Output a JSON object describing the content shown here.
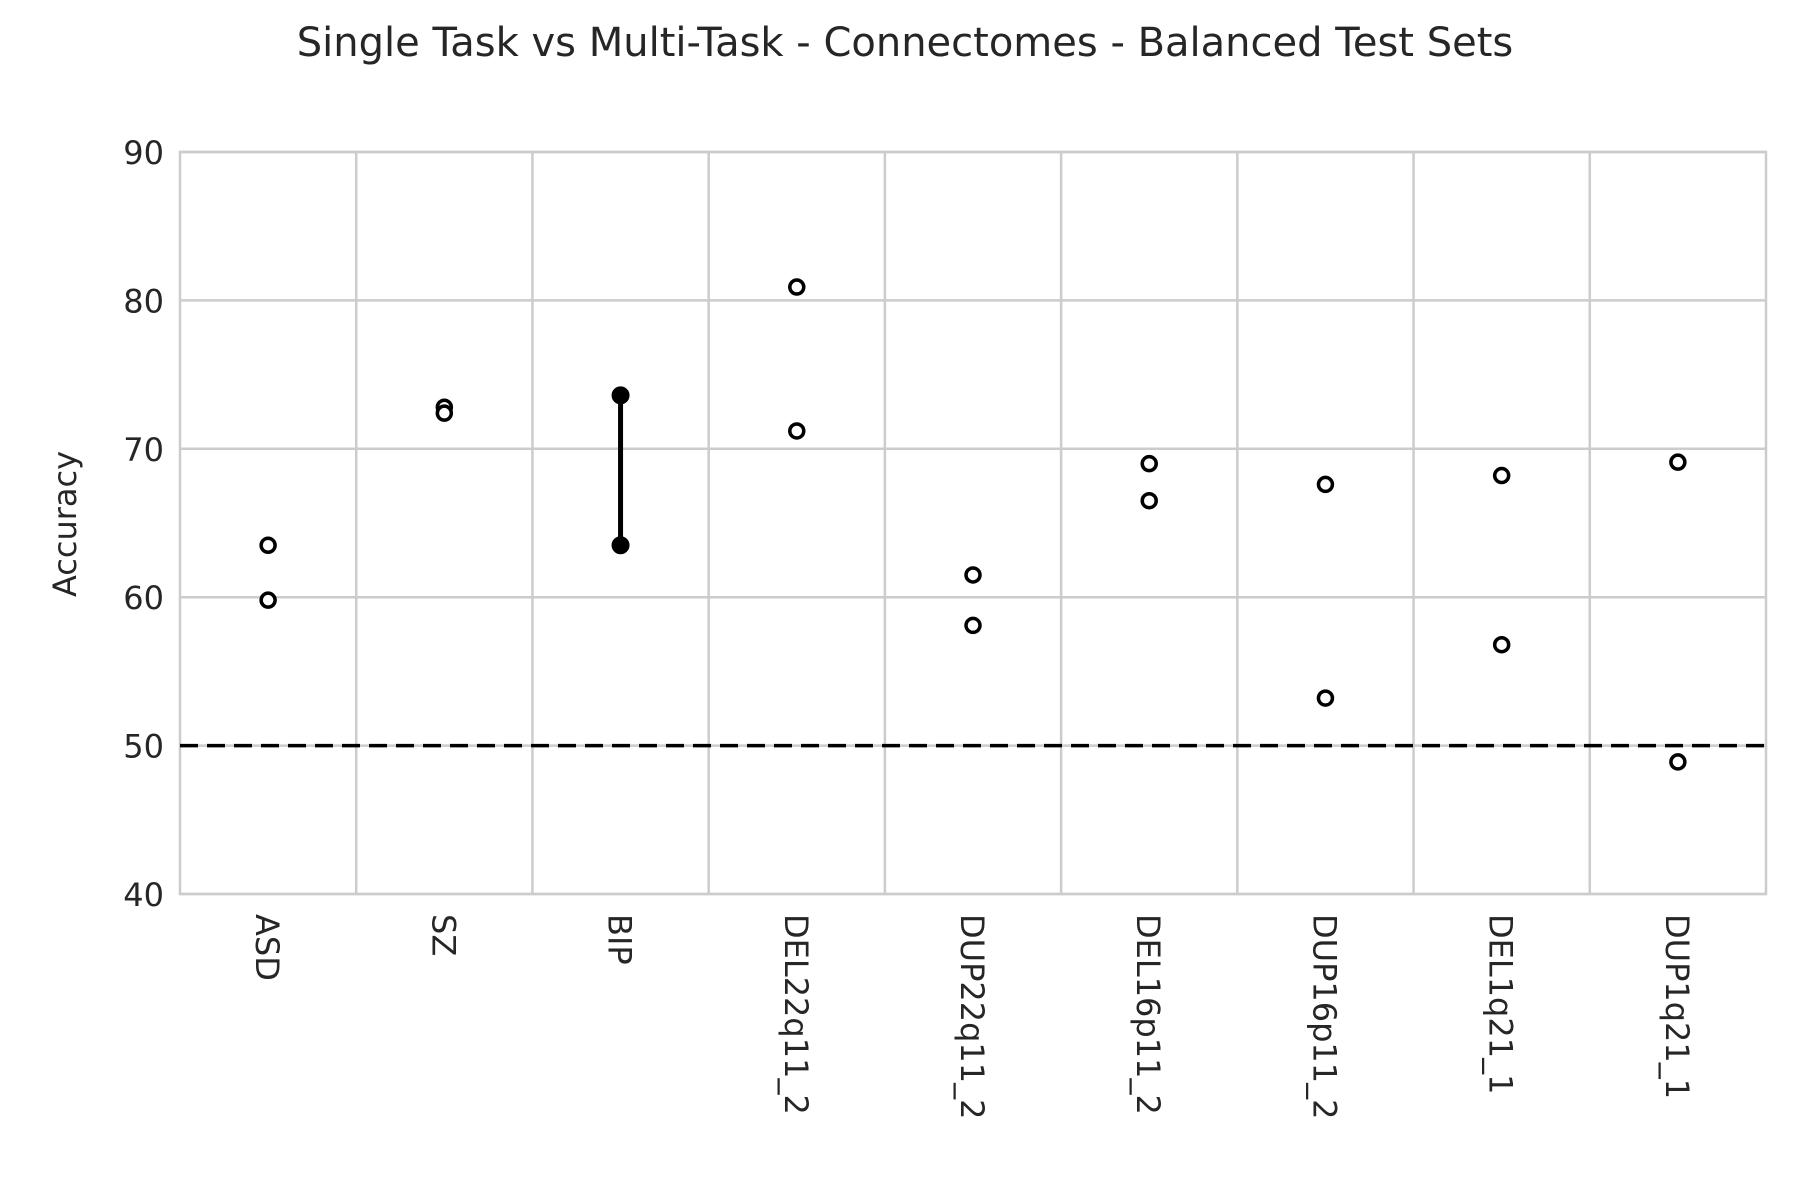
{
  "chart_data": {
    "type": "scatter",
    "title": "Single Task vs Multi-Task - Connectomes - Balanced Test Sets",
    "xlabel": "",
    "ylabel": "Accuracy",
    "ylim": [
      40,
      90
    ],
    "yticks": [
      40,
      50,
      60,
      70,
      80,
      90
    ],
    "grid": true,
    "legend": "none",
    "categories": [
      "ASD",
      "SZ",
      "BIP",
      "DEL22q11_2",
      "DUP22q11_2",
      "DEL16p11_2",
      "DUP16p11_2",
      "DEL1q21_1",
      "DUP1q21_1"
    ],
    "series": [
      {
        "values": [
          63.5,
          72.8,
          73.6,
          80.9,
          61.5,
          69.0,
          67.6,
          68.2,
          69.1
        ]
      },
      {
        "values": [
          59.8,
          72.4,
          63.5,
          71.2,
          58.1,
          66.5,
          53.2,
          56.8,
          48.9
        ]
      }
    ],
    "highlighted_category": "BIP",
    "reference_line": {
      "y": 50,
      "style": "dashed"
    },
    "colors": {
      "marker": "#000000",
      "grid": "#cccccc",
      "text": "#262626",
      "background": "#ffffff"
    }
  }
}
